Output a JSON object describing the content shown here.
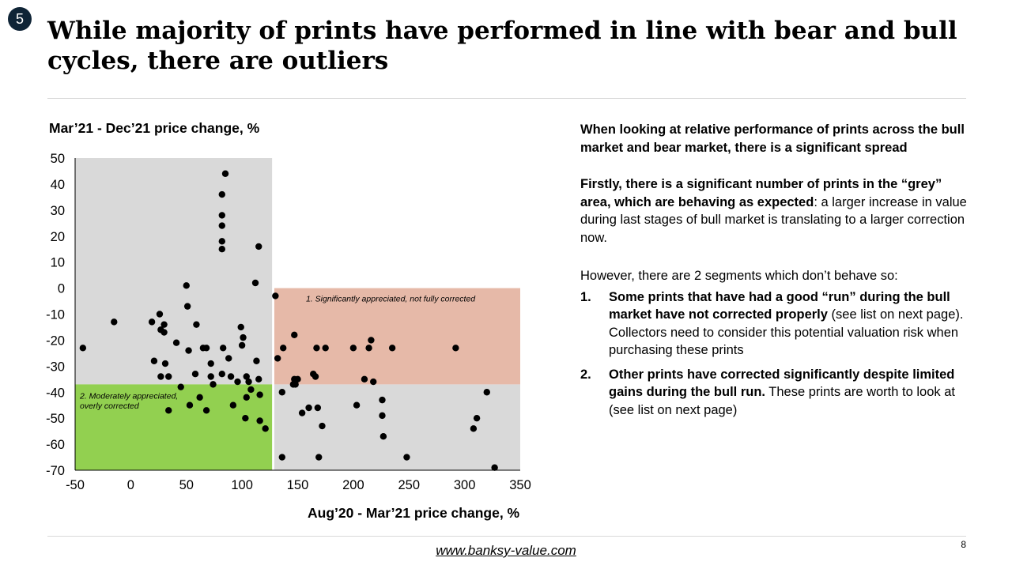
{
  "slide_number": "5",
  "title": "While majority of prints have performed in line with bear and bull cycles, there are outliers",
  "right_panel": {
    "intro": "When looking at relative performance of prints across the bull market and bear market, there is a significant spread",
    "firstly_bold": "Firstly, there is a significant number of prints in the “grey” area, which are behaving as expected",
    "firstly_rest": ": a larger increase in value during last stages of bull market is translating to a larger correction now.",
    "however": "However, there are 2 segments which don’t behave so:",
    "items": [
      {
        "num": "1.",
        "bold": "Some prints that have had a good “run” during the bull market have not corrected properly",
        "rest": " (see list on next page). Collectors need to consider this potential valuation risk when purchasing these prints"
      },
      {
        "num": "2.",
        "bold": "Other prints have corrected significantly despite limited gains during the bull run.",
        "rest": " These prints are worth to look at (see list on next page)"
      }
    ]
  },
  "footer": {
    "link_text": "www.banksy-value.com",
    "page_number": "8"
  },
  "colors": {
    "badge_bg": "#0f2436",
    "grey_zone": "#d9d9d9",
    "salmon_zone": "#e6b9a8",
    "green_zone": "#92d050",
    "point": "#000000"
  },
  "chart_data": {
    "type": "scatter",
    "title": "",
    "xlabel": "Aug’20 - Mar’21 price change, %",
    "ylabel": "Mar’21 - Dec’21 price change, %",
    "xlim": [
      -50,
      350
    ],
    "ylim": [
      -70,
      50
    ],
    "x_ticks": [
      -50,
      0,
      50,
      100,
      150,
      200,
      250,
      300,
      350
    ],
    "y_ticks": [
      50,
      40,
      30,
      20,
      10,
      0,
      -10,
      -20,
      -30,
      -40,
      -50,
      -60,
      -70
    ],
    "grid": false,
    "zones": [
      {
        "name": "grey-left",
        "label": "",
        "color": "grey",
        "x": [
          -50,
          127
        ],
        "y": [
          -37,
          50
        ]
      },
      {
        "name": "grey-bottom-right",
        "label": "",
        "color": "grey",
        "x": [
          129,
          350
        ],
        "y": [
          -70,
          -37
        ]
      },
      {
        "name": "salmon",
        "label": "1. Significantly appreciated, not fully corrected",
        "color": "salmon",
        "x": [
          129,
          350
        ],
        "y": [
          -37,
          0
        ]
      },
      {
        "name": "green",
        "label": "2. Moderately appreciated, overly corrected",
        "color": "green",
        "x": [
          -50,
          127
        ],
        "y": [
          -70,
          -37
        ]
      }
    ],
    "points": [
      [
        85,
        44
      ],
      [
        82,
        36
      ],
      [
        82,
        28
      ],
      [
        82,
        24
      ],
      [
        82,
        18
      ],
      [
        82,
        15
      ],
      [
        115,
        16
      ],
      [
        112,
        2
      ],
      [
        -43,
        -23
      ],
      [
        -15,
        -13
      ],
      [
        19,
        -13
      ],
      [
        26,
        -10
      ],
      [
        30,
        -14
      ],
      [
        50,
        1
      ],
      [
        51,
        -7
      ],
      [
        59,
        -14
      ],
      [
        99,
        -15
      ],
      [
        101,
        -19
      ],
      [
        100,
        -22
      ],
      [
        83,
        -23
      ],
      [
        65,
        -23
      ],
      [
        68,
        -23
      ],
      [
        52,
        -24
      ],
      [
        30,
        -17
      ],
      [
        27,
        -16
      ],
      [
        41,
        -21
      ],
      [
        21,
        -28
      ],
      [
        31,
        -29
      ],
      [
        72,
        -29
      ],
      [
        88,
        -27
      ],
      [
        113,
        -28
      ],
      [
        27,
        -34
      ],
      [
        34,
        -34
      ],
      [
        58,
        -33
      ],
      [
        82,
        -33
      ],
      [
        104,
        -34
      ],
      [
        115,
        -35
      ],
      [
        90,
        -34
      ],
      [
        72,
        -34
      ],
      [
        74,
        -37
      ],
      [
        96,
        -36
      ],
      [
        106,
        -36
      ],
      [
        45,
        -38
      ],
      [
        108,
        -39
      ],
      [
        116,
        -41
      ],
      [
        62,
        -42
      ],
      [
        92,
        -45
      ],
      [
        53,
        -45
      ],
      [
        68,
        -47
      ],
      [
        34,
        -47
      ],
      [
        103,
        -50
      ],
      [
        104,
        -42
      ],
      [
        116,
        -51
      ],
      [
        121,
        -54
      ],
      [
        130,
        -3
      ],
      [
        132,
        -27
      ],
      [
        137,
        -23
      ],
      [
        147,
        -18
      ],
      [
        146,
        -37
      ],
      [
        147,
        -35
      ],
      [
        148,
        -37
      ],
      [
        136,
        -40
      ],
      [
        150,
        -35
      ],
      [
        164,
        -33
      ],
      [
        166,
        -34
      ],
      [
        167,
        -23
      ],
      [
        175,
        -23
      ],
      [
        200,
        -23
      ],
      [
        214,
        -23
      ],
      [
        216,
        -20
      ],
      [
        210,
        -35
      ],
      [
        218,
        -36
      ],
      [
        235,
        -23
      ],
      [
        292,
        -23
      ],
      [
        154,
        -48
      ],
      [
        160,
        -46
      ],
      [
        168,
        -46
      ],
      [
        172,
        -53
      ],
      [
        203,
        -45
      ],
      [
        226,
        -43
      ],
      [
        226,
        -49
      ],
      [
        227,
        -57
      ],
      [
        136,
        -65
      ],
      [
        169,
        -65
      ],
      [
        248,
        -65
      ],
      [
        320,
        -40
      ],
      [
        311,
        -50
      ],
      [
        308,
        -54
      ],
      [
        327,
        -69
      ]
    ]
  }
}
